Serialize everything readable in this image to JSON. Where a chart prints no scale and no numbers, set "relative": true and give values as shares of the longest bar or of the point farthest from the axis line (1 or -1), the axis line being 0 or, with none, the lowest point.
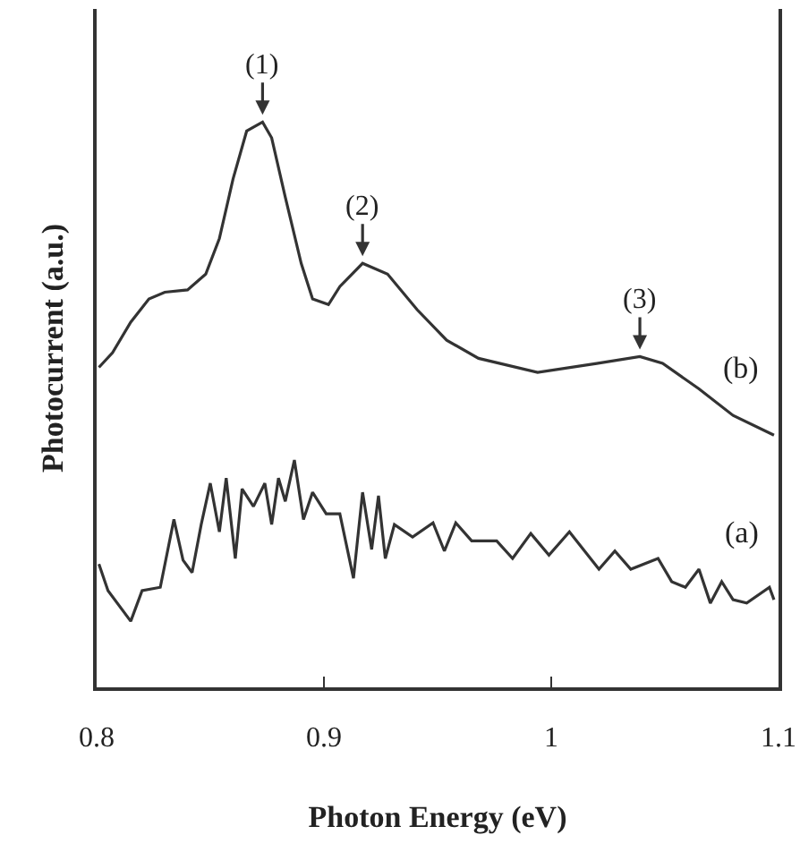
{
  "chart_data": {
    "type": "line",
    "xlabel": "Photon Energy (eV)",
    "ylabel": "Photocurrent (a.u.)",
    "relative": true,
    "xlim": [
      0.8,
      1.1
    ],
    "xticks": [
      0.8,
      0.9,
      1,
      1.1
    ],
    "grid": false,
    "legend": false,
    "marker": "none",
    "line_style": "solid",
    "annotations": [
      {
        "text": "(1)",
        "x": 0.873,
        "y": 1
      },
      {
        "text": "(2)",
        "x": 0.917,
        "y": 0.75
      },
      {
        "text": "(3)",
        "x": 1.039,
        "y": 0.585
      }
    ],
    "series": [
      {
        "name": "(a)",
        "color": "#333333",
        "x": [
          0.801,
          0.805,
          0.815,
          0.82,
          0.828,
          0.834,
          0.838,
          0.842,
          0.846,
          0.85,
          0.854,
          0.857,
          0.861,
          0.864,
          0.869,
          0.874,
          0.877,
          0.88,
          0.883,
          0.887,
          0.891,
          0.895,
          0.901,
          0.907,
          0.913,
          0.917,
          0.921,
          0.924,
          0.927,
          0.931,
          0.939,
          0.948,
          0.953,
          0.958,
          0.965,
          0.976,
          0.983,
          0.991,
          0.999,
          1.008,
          1.021,
          1.028,
          1.035,
          1.047,
          1.053,
          1.059,
          1.065,
          1.07,
          1.075,
          1.08,
          1.086,
          1.096,
          1.098
        ],
        "values": [
          0.218,
          0.171,
          0.117,
          0.171,
          0.177,
          0.297,
          0.225,
          0.203,
          0.288,
          0.361,
          0.275,
          0.37,
          0.228,
          0.351,
          0.32,
          0.361,
          0.288,
          0.37,
          0.329,
          0.402,
          0.297,
          0.345,
          0.307,
          0.307,
          0.193,
          0.345,
          0.244,
          0.339,
          0.228,
          0.288,
          0.266,
          0.291,
          0.241,
          0.291,
          0.259,
          0.259,
          0.228,
          0.272,
          0.234,
          0.275,
          0.209,
          0.241,
          0.209,
          0.228,
          0.187,
          0.177,
          0.209,
          0.149,
          0.187,
          0.155,
          0.149,
          0.177,
          0.155
        ]
      },
      {
        "name": "(b)",
        "color": "#333333",
        "x": [
          0.801,
          0.807,
          0.815,
          0.823,
          0.83,
          0.84,
          0.848,
          0.854,
          0.86,
          0.866,
          0.873,
          0.877,
          0.883,
          0.89,
          0.895,
          0.902,
          0.907,
          0.917,
          0.928,
          0.941,
          0.954,
          0.968,
          0.994,
          1.02,
          1.039,
          1.049,
          1.065,
          1.08,
          1.098
        ],
        "values": [
          0.566,
          0.592,
          0.646,
          0.687,
          0.699,
          0.703,
          0.731,
          0.794,
          0.899,
          0.984,
          1,
          0.972,
          0.867,
          0.75,
          0.687,
          0.677,
          0.709,
          0.75,
          0.731,
          0.668,
          0.614,
          0.582,
          0.557,
          0.573,
          0.585,
          0.573,
          0.528,
          0.481,
          0.446
        ]
      }
    ]
  }
}
